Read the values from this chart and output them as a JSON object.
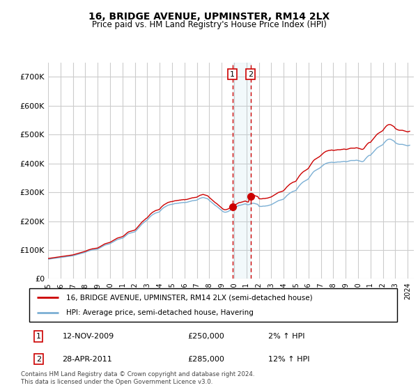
{
  "title": "16, BRIDGE AVENUE, UPMINSTER, RM14 2LX",
  "subtitle": "Price paid vs. HM Land Registry's House Price Index (HPI)",
  "legend_line1": "16, BRIDGE AVENUE, UPMINSTER, RM14 2LX (semi-detached house)",
  "legend_line2": "HPI: Average price, semi-detached house, Havering",
  "footnote": "Contains HM Land Registry data © Crown copyright and database right 2024.\nThis data is licensed under the Open Government Licence v3.0.",
  "annotation1_date": "12-NOV-2009",
  "annotation1_price": "£250,000",
  "annotation1_hpi": "2% ↑ HPI",
  "annotation2_date": "28-APR-2011",
  "annotation2_price": "£285,000",
  "annotation2_hpi": "12% ↑ HPI",
  "sale1_x": 2009.87,
  "sale1_y": 250000,
  "sale2_x": 2011.33,
  "sale2_y": 285000,
  "red_line_color": "#cc0000",
  "blue_line_color": "#7bafd4",
  "background_color": "#ffffff",
  "grid_color": "#cccccc",
  "ylim": [
    0,
    750000
  ],
  "xlim": [
    1995,
    2024.5
  ],
  "yticks": [
    0,
    100000,
    200000,
    300000,
    400000,
    500000,
    600000,
    700000
  ],
  "ytick_labels": [
    "£0",
    "£100K",
    "£200K",
    "£300K",
    "£400K",
    "£500K",
    "£600K",
    "£700K"
  ],
  "xticks": [
    1995,
    1996,
    1997,
    1998,
    1999,
    2000,
    2001,
    2002,
    2003,
    2004,
    2005,
    2006,
    2007,
    2008,
    2009,
    2010,
    2011,
    2012,
    2013,
    2014,
    2015,
    2016,
    2017,
    2018,
    2019,
    2020,
    2021,
    2022,
    2023,
    2024
  ]
}
